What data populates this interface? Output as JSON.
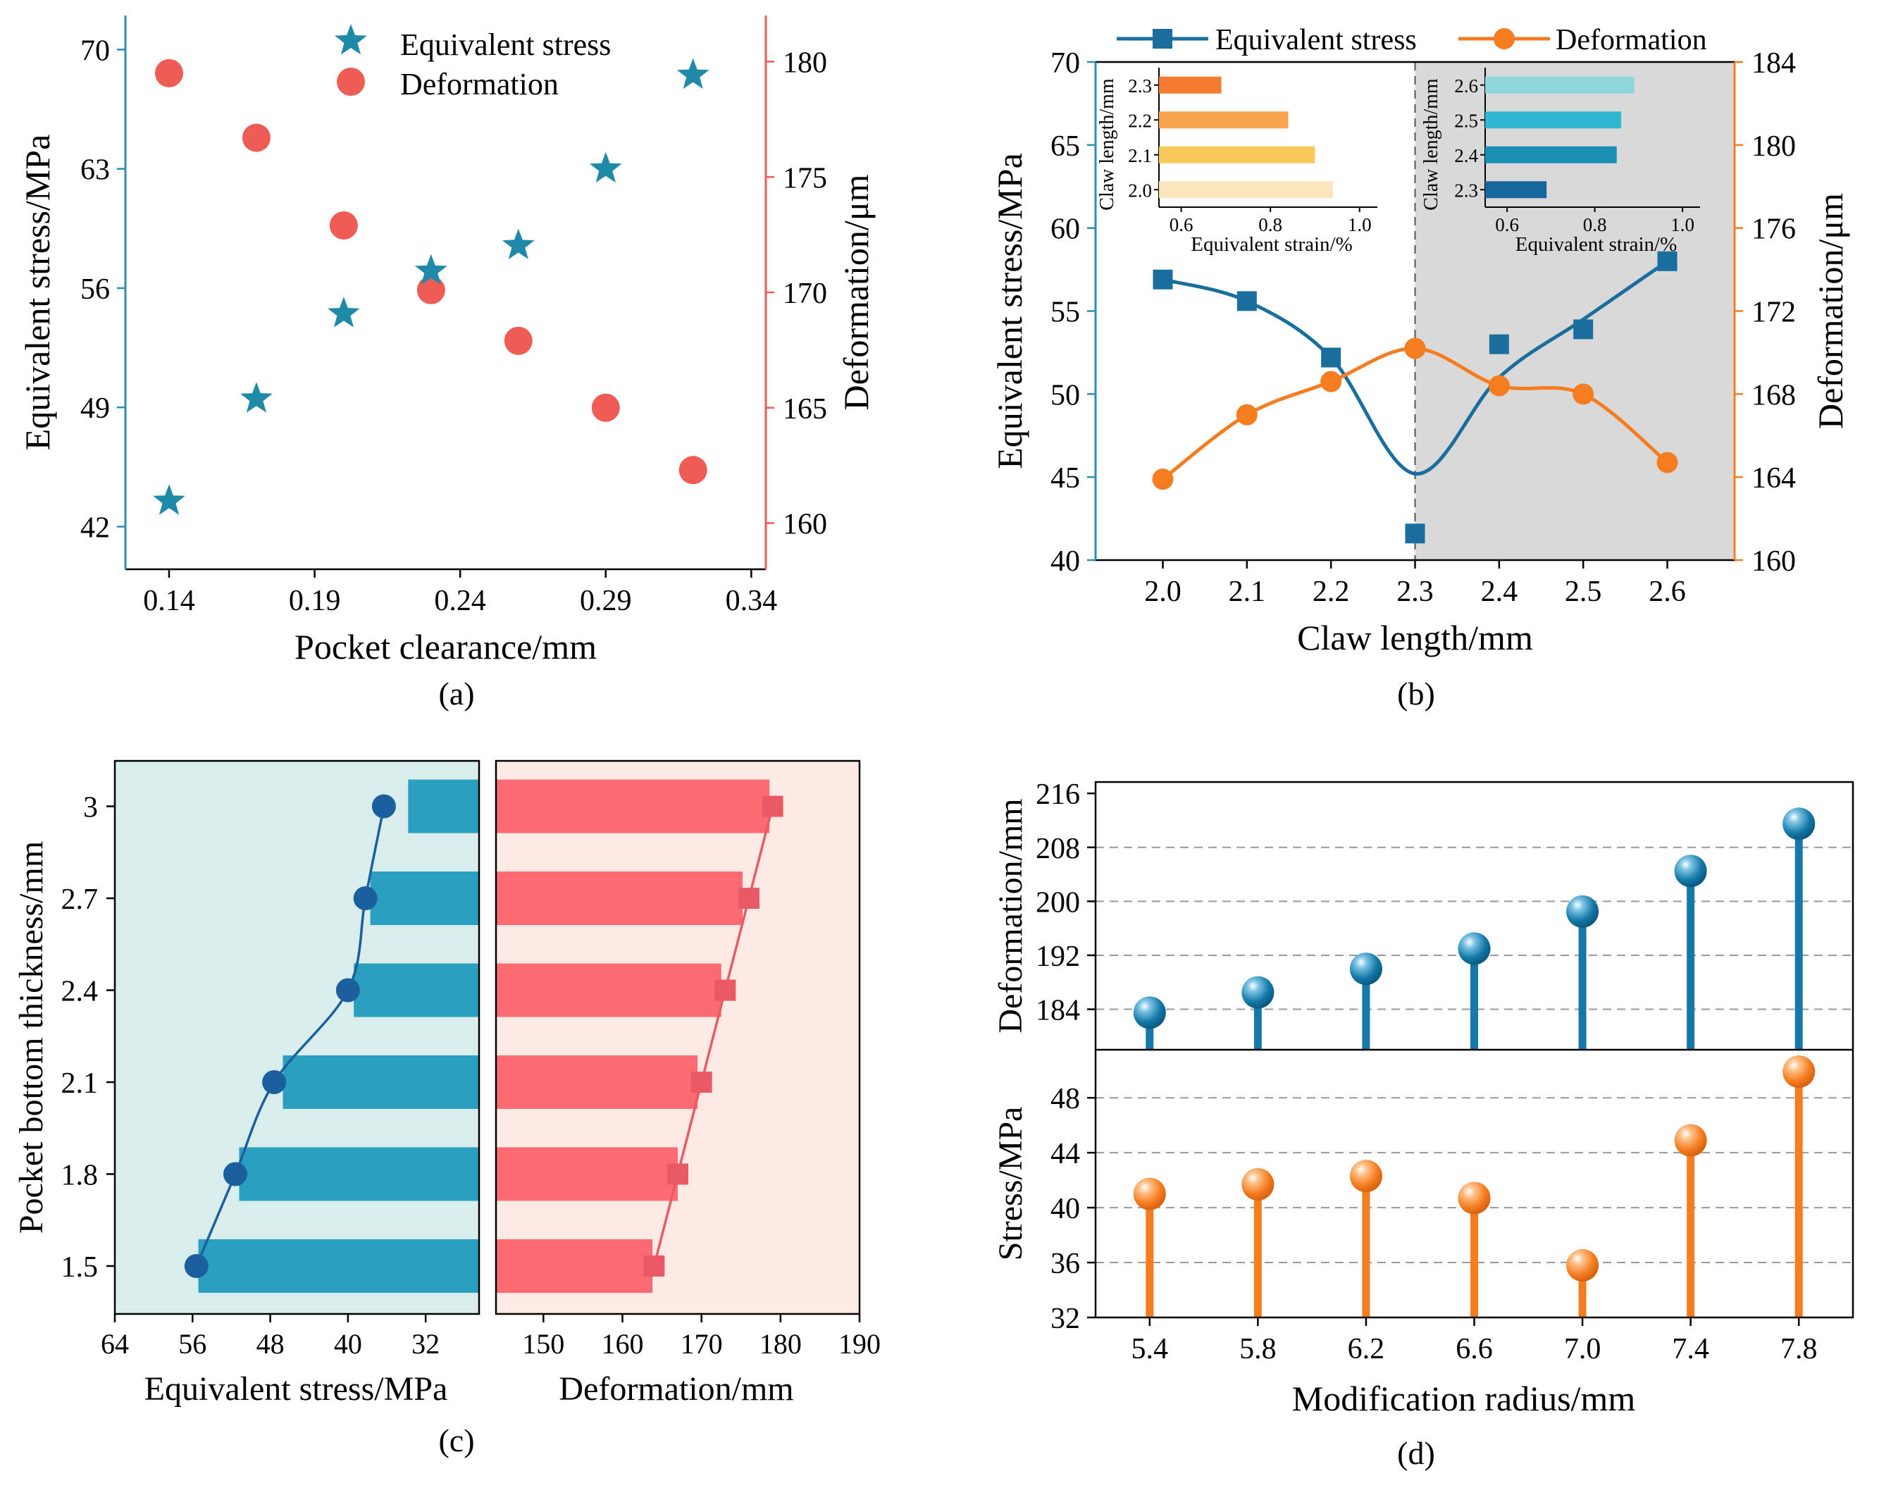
{
  "panel_labels": [
    "(a)",
    "(b)",
    "(c)",
    "(d)"
  ],
  "colors": {
    "blue_star": "#1f8aa8",
    "red_dot": "#ef5b55",
    "blue_line": "#1a6e9e",
    "orange_line": "#f57d20",
    "axis_left_a": "#2a8fb0",
    "axis_right_a": "#ef5b55",
    "grey_region": "#d9d9d9",
    "c_left_bg": "#d9eeec",
    "c_right_bg": "#fdeae5",
    "c_blue_bar": "#2b9fbf",
    "c_red_bar": "#fd6b72",
    "c_blue_mark": "#1b5f9e",
    "c_red_mark": "#ea5a66",
    "d_blue": "#1479a8",
    "d_orange": "#f57d20"
  },
  "chart_data": [
    {
      "id": "a",
      "type": "scatter",
      "xlabel": "Pocket clearance/mm",
      "ylabel_left": "Equivalent stress/MPa",
      "ylabel_right": "Deformation/μm",
      "xlim": [
        0.125,
        0.345
      ],
      "xticks": [
        0.14,
        0.19,
        0.24,
        0.29,
        0.34
      ],
      "xtick_labels": [
        "0.14",
        "0.19",
        "0.24",
        "0.29",
        "0.34"
      ],
      "ylim_left": [
        39.5,
        72
      ],
      "yticks_left": [
        42,
        49,
        56,
        63,
        70
      ],
      "ylim_right": [
        158,
        182
      ],
      "yticks_right": [
        160,
        165,
        170,
        175,
        180
      ],
      "legend": [
        "Equivalent stress",
        "Deformation"
      ],
      "series": [
        {
          "name": "Equivalent stress",
          "axis": "left",
          "marker": "star",
          "x": [
            0.14,
            0.17,
            0.2,
            0.23,
            0.26,
            0.29,
            0.32
          ],
          "y": [
            43.5,
            49.5,
            54.5,
            57.0,
            58.5,
            63.0,
            68.5
          ]
        },
        {
          "name": "Deformation",
          "axis": "right",
          "marker": "circle",
          "x": [
            0.14,
            0.17,
            0.2,
            0.23,
            0.26,
            0.29,
            0.32
          ],
          "y": [
            179.5,
            176.7,
            172.9,
            170.1,
            167.9,
            165.0,
            162.3
          ]
        }
      ]
    },
    {
      "id": "b",
      "type": "line",
      "xlabel": "Claw length/mm",
      "ylabel_left": "Equivalent stress/MPa",
      "ylabel_right": "Deformation/μm",
      "xlim": [
        1.92,
        2.68
      ],
      "xticks": [
        2.0,
        2.1,
        2.2,
        2.3,
        2.4,
        2.5,
        2.6
      ],
      "xtick_labels": [
        "2.0",
        "2.1",
        "2.2",
        "2.3",
        "2.4",
        "2.5",
        "2.6"
      ],
      "ylim_left": [
        40,
        70
      ],
      "yticks_left": [
        40,
        45,
        50,
        55,
        60,
        65,
        70
      ],
      "ylim_right": [
        160,
        184
      ],
      "yticks_right": [
        160,
        164,
        168,
        172,
        176,
        180,
        184
      ],
      "legend": [
        "Equivalent stress",
        "Deformation"
      ],
      "shaded_from_x": 2.3,
      "series": [
        {
          "name": "Equivalent stress",
          "axis": "left",
          "marker": "square",
          "x": [
            2.0,
            2.1,
            2.2,
            2.3,
            2.4,
            2.5,
            2.6
          ],
          "y": [
            56.9,
            55.6,
            52.2,
            41.6,
            53.0,
            53.9,
            58.0
          ],
          "curve_y": [
            56.9,
            55.6,
            52.2,
            45.2,
            51.0,
            54.5,
            58.0
          ]
        },
        {
          "name": "Deformation",
          "axis": "right",
          "marker": "circle",
          "x": [
            2.0,
            2.1,
            2.2,
            2.3,
            2.4,
            2.5,
            2.6
          ],
          "y": [
            163.9,
            167.0,
            168.6,
            170.2,
            168.4,
            168.0,
            164.7
          ]
        }
      ],
      "insets": [
        {
          "ylabel": "Claw length/mm",
          "xlabel": "Equivalent strain/%",
          "categories": [
            "2.3",
            "2.2",
            "2.1",
            "2.0"
          ],
          "values": [
            0.69,
            0.84,
            0.9,
            0.94
          ],
          "colors": [
            "#f57c2e",
            "#f7a54e",
            "#f9c95c",
            "#fbe6bd"
          ],
          "xlim": [
            0.55,
            1.04
          ],
          "xticks": [
            0.6,
            0.8,
            1.0
          ],
          "xtick_labels": [
            "0.6",
            "0.8",
            "1.0"
          ]
        },
        {
          "ylabel": "Claw length/mm",
          "xlabel": "Equivalent strain/%",
          "categories": [
            "2.6",
            "2.5",
            "2.4",
            "2.3"
          ],
          "values": [
            0.89,
            0.86,
            0.85,
            0.69
          ],
          "colors": [
            "#8ed6d8",
            "#2fb6d3",
            "#1b90b6",
            "#16679c"
          ],
          "xlim": [
            0.55,
            1.04
          ],
          "xticks": [
            0.6,
            0.8,
            1.0
          ],
          "xtick_labels": [
            "0.6",
            "0.8",
            "1.0"
          ]
        }
      ]
    },
    {
      "id": "c",
      "type": "bar",
      "ylabel": "Pocket bottom thickness/mm",
      "categories": [
        "1.5",
        "1.8",
        "2.1",
        "2.4",
        "2.7",
        "3"
      ],
      "left": {
        "xlabel": "Equivalent stress/MPa",
        "xlim": [
          64,
          26.5
        ],
        "xticks": [
          64,
          56,
          48,
          40,
          32
        ],
        "xtick_labels": [
          "64",
          "56",
          "48",
          "40",
          "32"
        ],
        "values": [
          55.4,
          51.2,
          46.7,
          39.4,
          37.7,
          33.8
        ],
        "line_values": [
          55.6,
          51.6,
          47.6,
          40.0,
          38.2,
          36.3
        ]
      },
      "right": {
        "xlabel": "Deformation/mm",
        "xlim": [
          144,
          190
        ],
        "xticks": [
          150,
          160,
          170,
          180,
          190
        ],
        "xtick_labels": [
          "150",
          "160",
          "170",
          "180",
          "190"
        ],
        "values": [
          163.8,
          167.0,
          169.5,
          172.5,
          175.2,
          178.6
        ],
        "line_values": [
          164.0,
          167.0,
          170.0,
          173.0,
          176.0,
          179.0
        ]
      }
    },
    {
      "id": "d",
      "type": "stem",
      "xlabel": "Modification radius/mm",
      "x": [
        5.4,
        5.8,
        6.2,
        6.6,
        7.0,
        7.4,
        7.8
      ],
      "xtick_labels": [
        "5.4",
        "5.8",
        "6.2",
        "6.6",
        "7.0",
        "7.4",
        "7.8"
      ],
      "top": {
        "ylabel": "Deformation/mm",
        "ylim": [
          178,
          218
        ],
        "yticks": [
          184,
          192,
          200,
          208,
          216
        ],
        "grid": [
          184,
          192,
          200,
          208
        ],
        "values": [
          183.5,
          186.5,
          190.0,
          193.0,
          198.5,
          204.5,
          211.5
        ]
      },
      "bottom": {
        "ylabel": "Stress/MPa",
        "ylim": [
          32,
          51.5
        ],
        "yticks": [
          32,
          36,
          40,
          44,
          48
        ],
        "grid": [
          36,
          40,
          44,
          48
        ],
        "values": [
          41.0,
          41.7,
          42.3,
          40.7,
          35.8,
          44.9,
          49.9
        ]
      }
    }
  ]
}
